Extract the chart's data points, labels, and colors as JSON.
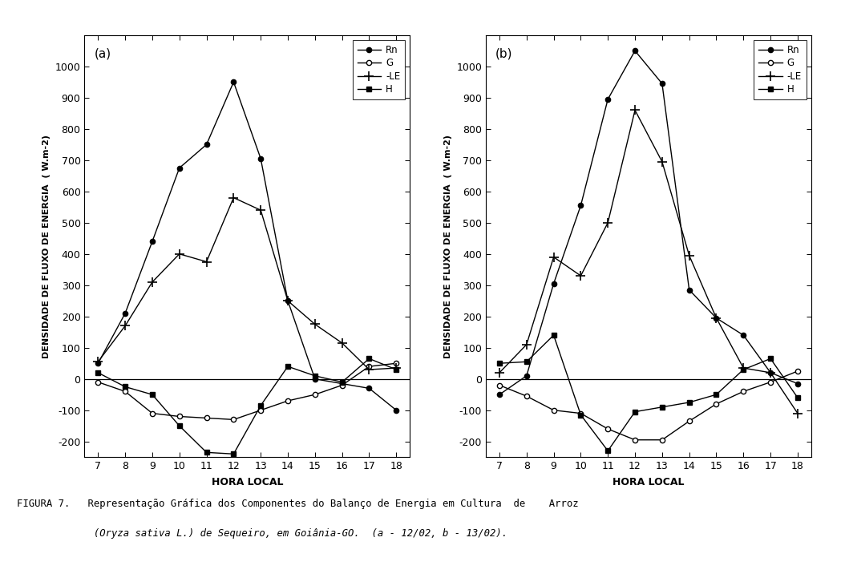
{
  "hours": [
    7,
    8,
    9,
    10,
    11,
    12,
    13,
    14,
    15,
    16,
    17,
    18
  ],
  "panel_a": {
    "label": "(a)",
    "Rn": [
      50,
      210,
      440,
      675,
      750,
      950,
      705,
      250,
      0,
      -15,
      -30,
      -100
    ],
    "G": [
      -10,
      -40,
      -110,
      -120,
      -125,
      -130,
      -100,
      -70,
      -50,
      -20,
      40,
      50
    ],
    "LE": [
      55,
      170,
      310,
      400,
      375,
      580,
      540,
      250,
      175,
      115,
      30,
      35
    ],
    "H": [
      20,
      -25,
      -50,
      -150,
      -235,
      -240,
      -85,
      40,
      10,
      -10,
      65,
      30
    ]
  },
  "panel_b": {
    "label": "(b)",
    "Rn": [
      -50,
      10,
      305,
      555,
      895,
      1050,
      945,
      285,
      195,
      140,
      20,
      -15
    ],
    "G": [
      -20,
      -55,
      -100,
      -110,
      -160,
      -195,
      -195,
      -135,
      -80,
      -40,
      -10,
      25
    ],
    "LE": [
      20,
      110,
      390,
      330,
      500,
      860,
      695,
      395,
      195,
      35,
      20,
      -110
    ],
    "H": [
      50,
      55,
      140,
      -115,
      -230,
      -105,
      -90,
      -75,
      -50,
      30,
      65,
      -60
    ]
  },
  "ylim": [
    -250,
    1100
  ],
  "yticks": [
    -200,
    -100,
    0,
    100,
    200,
    300,
    400,
    500,
    600,
    700,
    800,
    900,
    1000
  ],
  "ylabel": "DENSIDADE DE FLUXO DE ENERGIA  ( W.m-2)",
  "xlabel": "HORA LOCAL",
  "bg_color": "#ffffff"
}
